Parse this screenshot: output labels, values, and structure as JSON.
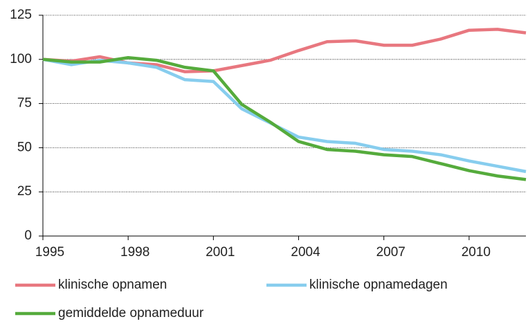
{
  "chart_data": {
    "type": "line",
    "x": [
      1995,
      1996,
      1997,
      1998,
      1999,
      2000,
      2001,
      2002,
      2003,
      2004,
      2005,
      2006,
      2007,
      2008,
      2009,
      2010,
      2011,
      2012
    ],
    "series": [
      {
        "name": "klinische opnamen",
        "color": "#e8777f",
        "values": [
          100,
          99,
          101.5,
          98,
          97,
          93,
          93.5,
          96.5,
          99.5,
          105,
          110,
          110.5,
          108,
          108,
          111.5,
          116.5,
          117,
          115
        ]
      },
      {
        "name": "klinische opnamedagen",
        "color": "#87cdee",
        "values": [
          100,
          97,
          99.5,
          98,
          95.5,
          88.5,
          87.5,
          72,
          64,
          56,
          53.5,
          52.5,
          49,
          48,
          46,
          42.5,
          39.5,
          36.5
        ]
      },
      {
        "name": "gemiddelde opnameduur",
        "color": "#55ab3c",
        "values": [
          100,
          98.5,
          98.5,
          101,
          99.5,
          95.5,
          93.5,
          74.5,
          64.5,
          53.5,
          49,
          48,
          46,
          45,
          41,
          37,
          34,
          32
        ]
      }
    ],
    "xlim": [
      1995,
      2012
    ],
    "xticks": [
      1995,
      1998,
      2001,
      2004,
      2007,
      2010
    ],
    "ylim": [
      0,
      125
    ],
    "yticks": [
      0,
      25,
      50,
      75,
      100,
      125
    ],
    "grid": true
  }
}
